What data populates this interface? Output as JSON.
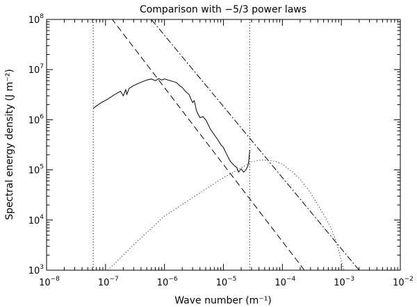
{
  "chart_data": {
    "type": "line",
    "title": "Comparison with −5/3 power laws",
    "xlabel": "Wave number (m⁻¹)",
    "ylabel": "Spectral energy density (J m⁻²)",
    "xscale": "log",
    "yscale": "log",
    "xlim": [
      1e-08,
      0.01
    ],
    "ylim": [
      1000.0,
      100000000.0
    ],
    "x_ticks": [
      {
        "base": "10",
        "exp": "−8",
        "value": 1e-08
      },
      {
        "base": "10",
        "exp": "−7",
        "value": 1e-07
      },
      {
        "base": "10",
        "exp": "−6",
        "value": 1e-06
      },
      {
        "base": "10",
        "exp": "−5",
        "value": 1e-05
      },
      {
        "base": "10",
        "exp": "−4",
        "value": 0.0001
      },
      {
        "base": "10",
        "exp": "−3",
        "value": 0.001
      },
      {
        "base": "10",
        "exp": "−2",
        "value": 0.01
      }
    ],
    "y_ticks": [
      {
        "base": "10",
        "exp": "3",
        "value": 1000.0
      },
      {
        "base": "10",
        "exp": "4",
        "value": 10000.0
      },
      {
        "base": "10",
        "exp": "5",
        "value": 100000.0
      },
      {
        "base": "10",
        "exp": "6",
        "value": 1000000.0
      },
      {
        "base": "10",
        "exp": "7",
        "value": 10000000.0
      },
      {
        "base": "10",
        "exp": "8",
        "value": 100000000.0
      }
    ],
    "grid": false,
    "legend": "none",
    "vertical_lines": [
      6.2e-08,
      2.8e-05
    ],
    "series": [
      {
        "style": "solid",
        "x": [
          6.2e-08,
          8e-08,
          1.1e-07,
          1.5e-07,
          1.8e-07,
          2e-07,
          2.2e-07,
          2.3e-07,
          2.5e-07,
          3e-07,
          4e-07,
          5e-07,
          6e-07,
          7e-07,
          8e-07,
          9e-07,
          1e-06,
          1.2e-06,
          1.4e-06,
          1.6e-06,
          1.8e-06,
          2e-06,
          2.3e-06,
          2.6e-06,
          3e-06,
          3.2e-06,
          3.5e-06,
          4e-06,
          4.5e-06,
          5e-06,
          5.5e-06,
          6e-06,
          7e-06,
          8e-06,
          9e-06,
          1e-05,
          1.1e-05,
          1.2e-05,
          1.3e-05,
          1.5e-05,
          1.7e-05,
          1.8e-05,
          2e-05,
          2.2e-05,
          2.4e-05,
          2.6e-05,
          2.7e-05,
          2.8e-05
        ],
        "y": [
          1700000.0,
          2100000.0,
          2600000.0,
          3300000.0,
          3700000.0,
          3000000.0,
          4000000.0,
          3200000.0,
          4200000.0,
          4800000.0,
          5600000.0,
          6200000.0,
          6500000.0,
          6000000.0,
          6600000.0,
          6200000.0,
          6500000.0,
          6100000.0,
          5800000.0,
          5500000.0,
          4800000.0,
          4400000.0,
          3600000.0,
          3200000.0,
          2200000.0,
          2400000.0,
          1500000.0,
          1100000.0,
          1150000.0,
          1000000.0,
          800000.0,
          650000.0,
          500000.0,
          400000.0,
          320000.0,
          280000.0,
          220000.0,
          180000.0,
          150000.0,
          125000.0,
          110000.0,
          90000.0,
          105000.0,
          90000.0,
          100000.0,
          120000.0,
          160000.0,
          250000.0
        ]
      },
      {
        "style": "dashed",
        "x": [
          1e-07,
          0.000236
        ],
        "y": [
          150000000.0,
          1000.0
        ]
      },
      {
        "style": "dashdot",
        "x": [
          4.5e-07,
          0.002
        ],
        "y": [
          150000000.0,
          1000.0
        ]
      },
      {
        "style": "dotted",
        "x": [
          1.1e-07,
          3e-07,
          1e-06,
          3e-06,
          1e-05,
          2e-05,
          3e-05,
          4e-05,
          5e-05,
          6e-05,
          8e-05,
          0.0001,
          0.00015,
          0.0002,
          0.0003,
          0.0004,
          0.0005,
          0.0006,
          0.0007,
          0.0008,
          0.0009,
          0.001,
          0.0011
        ],
        "y": [
          1000.0,
          3200.0,
          12000.0,
          28000.0,
          70000.0,
          110000.0,
          145000.0,
          155000.0,
          157000.0,
          155000.0,
          145000.0,
          130000.0,
          90000.0,
          65000.0,
          35000.0,
          20000.0,
          13000.0,
          9000.0,
          6000.0,
          4000.0,
          2500.0,
          1500.0,
          1000.0
        ]
      }
    ]
  }
}
